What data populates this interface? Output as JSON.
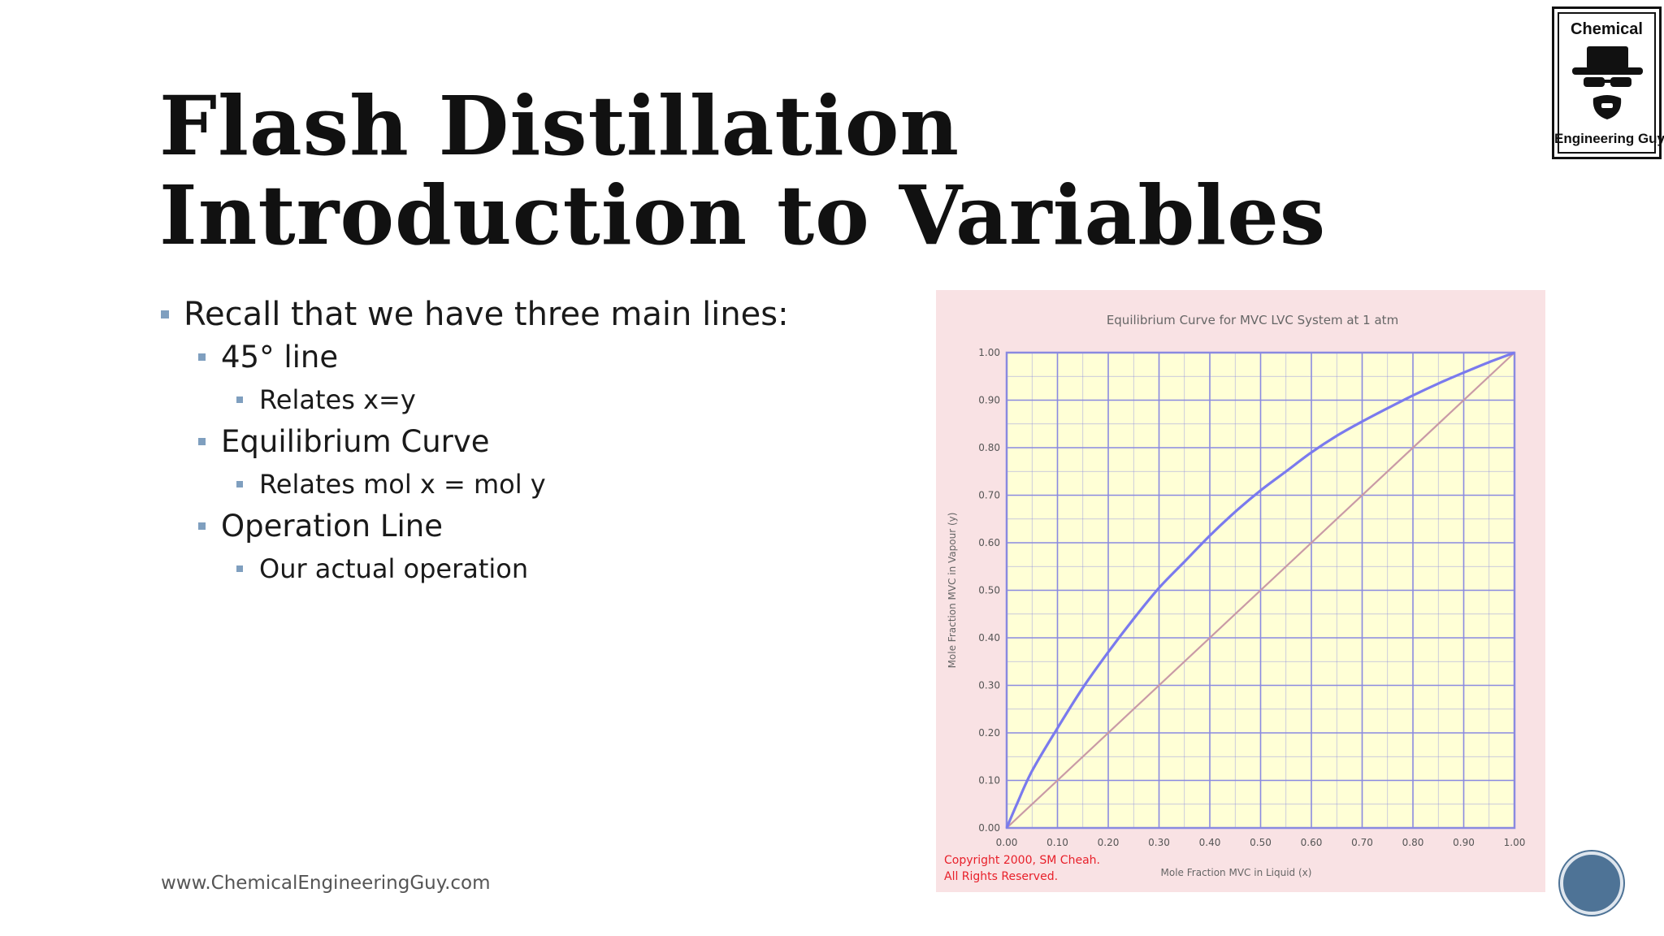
{
  "title": {
    "line1": "Flash Distillation",
    "line2": "Introduction to Variables"
  },
  "bullets": [
    {
      "level": 1,
      "text": "Recall that we have three main lines:"
    },
    {
      "level": 2,
      "text": "45° line"
    },
    {
      "level": 3,
      "text": "Relates x=y"
    },
    {
      "level": 2,
      "text": "Equilibrium Curve"
    },
    {
      "level": 3,
      "text": "Relates mol x = mol y"
    },
    {
      "level": 2,
      "text": "Operation Line"
    },
    {
      "level": 3,
      "text": "Our actual operation"
    }
  ],
  "footer": "www.ChemicalEngineeringGuy.com",
  "logo": {
    "top_text": "Chemical",
    "bottom_text": "Engineering Guy",
    "icon": "heisenberg-hat-icon"
  },
  "nav_button": {
    "icon": "circle-nav-icon"
  },
  "chart_data": {
    "type": "line",
    "title": "Equilibrium Curve for MVC LVC System at 1 atm",
    "xlabel": "Mole Fraction MVC in Liquid (x)",
    "ylabel": "Mole Fraction MVC in Vapour (y)",
    "xlim": [
      0,
      1
    ],
    "ylim": [
      0,
      1
    ],
    "x_ticks": [
      "0.00",
      "0.10",
      "0.20",
      "0.30",
      "0.40",
      "0.50",
      "0.60",
      "0.70",
      "0.80",
      "0.90",
      "1.00"
    ],
    "y_ticks": [
      "0.00",
      "0.10",
      "0.20",
      "0.30",
      "0.40",
      "0.50",
      "0.60",
      "0.70",
      "0.80",
      "0.90",
      "1.00"
    ],
    "grid": true,
    "copyright": [
      "Copyright 2000, SM Cheah.",
      "All Rights Reserved."
    ],
    "colors": {
      "background": "#f9e2e4",
      "plot_area": "#ffffd6",
      "grid": "#8a8ae0",
      "equilibrium": "#7a7aee",
      "diagonal": "#c99aa6",
      "copyright": "#e8202a"
    },
    "series": [
      {
        "name": "",
        "x": [
          0,
          0.02,
          0.05,
          0.1,
          0.15,
          0.2,
          0.25,
          0.3,
          0.35,
          0.4,
          0.45,
          0.5,
          0.55,
          0.6,
          0.65,
          0.7,
          0.75,
          0.8,
          0.85,
          0.9,
          0.95,
          1.0
        ],
        "y": [
          0,
          0.05,
          0.12,
          0.21,
          0.295,
          0.37,
          0.44,
          0.505,
          0.56,
          0.615,
          0.665,
          0.71,
          0.75,
          0.79,
          0.825,
          0.855,
          0.883,
          0.91,
          0.935,
          0.958,
          0.98,
          1.0
        ]
      },
      {
        "name": "",
        "x": [
          0,
          1
        ],
        "y": [
          0,
          1
        ]
      }
    ]
  }
}
